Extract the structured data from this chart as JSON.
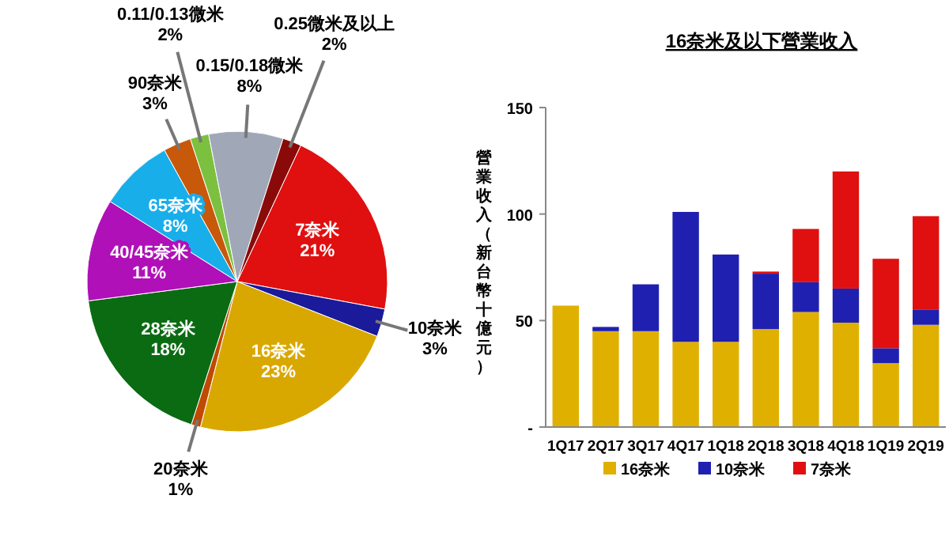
{
  "chart_data": [
    {
      "type": "pie",
      "categories": [
        "7奈米",
        "10奈米",
        "16奈米",
        "20奈米",
        "28奈米",
        "40/45奈米",
        "65奈米",
        "90奈米",
        "0.11/0.13微米",
        "0.15/0.18微米",
        "0.25微米及以上"
      ],
      "values": [
        21,
        3,
        23,
        1,
        18,
        11,
        8,
        3,
        2,
        8,
        2
      ],
      "value_labels": [
        "21%",
        "3%",
        "23%",
        "1%",
        "18%",
        "11%",
        "8%",
        "3%",
        "2%",
        "8%",
        "2%"
      ],
      "colors": [
        "#e01010",
        "#1a1a9a",
        "#d9a800",
        "#c04a00",
        "#0b6b12",
        "#b010b8",
        "#18aeea",
        "#c8580a",
        "#7cc040",
        "#a0a8b8",
        "#8a0a0a"
      ]
    },
    {
      "type": "bar",
      "title": "16奈米及以下營業收入",
      "ylabel": "營業收入（新台幣十億元）",
      "stacked": true,
      "legend": "bottom",
      "grid": false,
      "categories": [
        "1Q17",
        "2Q17",
        "3Q17",
        "4Q17",
        "1Q18",
        "2Q18",
        "3Q18",
        "4Q18",
        "1Q19",
        "2Q19"
      ],
      "ylim": [
        0,
        150
      ],
      "yticks": [
        {
          "value": 0,
          "label": "-"
        },
        50,
        100,
        150
      ],
      "series": [
        {
          "name": "16奈米",
          "color": "#e0b000",
          "values": [
            57,
            45,
            45,
            40,
            40,
            46,
            54,
            49,
            30,
            48
          ]
        },
        {
          "name": "10奈米",
          "color": "#2020b0",
          "values": [
            0,
            2,
            22,
            61,
            41,
            26,
            14,
            16,
            7,
            7
          ]
        },
        {
          "name": "7奈米",
          "color": "#e01010",
          "values": [
            0,
            0,
            0,
            0,
            0,
            1,
            25,
            55,
            42,
            44
          ]
        }
      ]
    }
  ]
}
